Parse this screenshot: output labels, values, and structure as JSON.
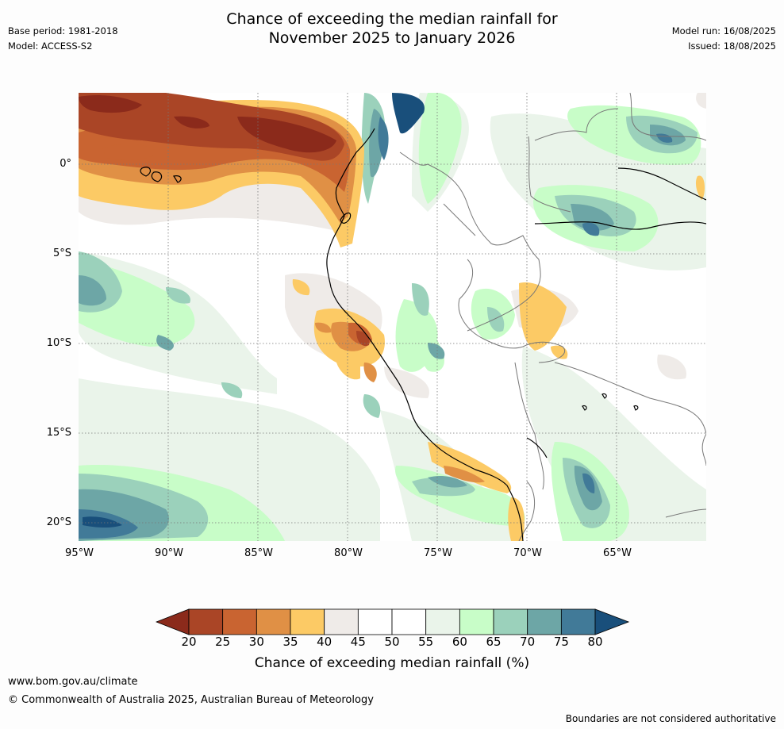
{
  "title": {
    "line1": "Chance of exceeding the median rainfall for",
    "line2": "November 2025 to January 2026"
  },
  "meta": {
    "base_period": "Base period: 1981-2018",
    "model": "Model: ACCESS-S2",
    "model_run": "Model run: 16/08/2025",
    "issued": "Issued: 18/08/2025"
  },
  "map": {
    "lat_labels": [
      "0°",
      "5°S",
      "10°S",
      "15°S",
      "20°S"
    ],
    "lon_labels": [
      "95°W",
      "90°W",
      "85°W",
      "80°W",
      "75°W",
      "70°W",
      "65°W"
    ]
  },
  "colorbar": {
    "ticks": [
      "20",
      "25",
      "30",
      "35",
      "40",
      "45",
      "50",
      "55",
      "60",
      "65",
      "70",
      "75",
      "80"
    ],
    "colors": [
      "#8b2a1b",
      "#aa4526",
      "#c96431",
      "#e09045",
      "#fcca65",
      "#efebe8",
      "#ffffff",
      "#ffffff",
      "#eaf4ea",
      "#c8fdc8",
      "#9bd1bb",
      "#6da6a6",
      "#417a98",
      "#194f7b"
    ],
    "title": "Chance of exceeding median rainfall (%)"
  },
  "footer": {
    "url": "www.bom.gov.au/climate",
    "copyright": "© Commonwealth of Australia 2025, Australian Bureau of Meteorology",
    "disclaimer": "Boundaries are not considered authoritative"
  }
}
